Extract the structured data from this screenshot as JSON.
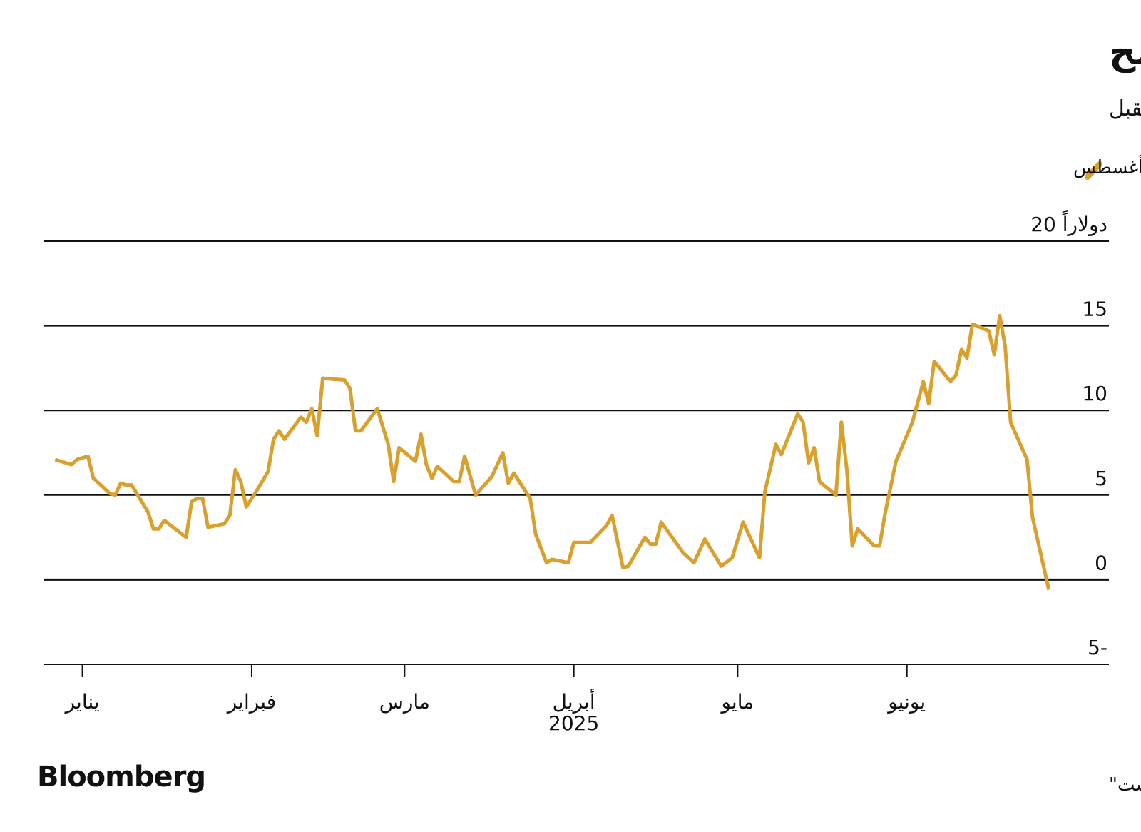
{
  "chart_data": {
    "type": "line",
    "title": "العقود المستقبلية للذرة الأوروبية أغلى من القمح",
    "subtitle": "الطقس الحار أثار مخاوف بشأن موسم الحصاد المقبل",
    "x": [
      -5,
      -2,
      -1,
      1,
      2,
      5,
      6,
      7,
      8,
      9,
      12,
      13,
      14,
      15,
      19,
      20,
      21,
      22,
      23,
      26,
      27,
      28,
      29,
      30,
      32,
      34,
      35,
      36,
      37,
      40,
      41,
      42,
      43,
      44,
      48,
      49,
      50,
      51,
      54,
      56,
      57,
      58,
      61,
      62,
      63,
      64,
      65,
      68,
      69,
      70,
      72,
      75,
      77,
      78,
      79,
      82,
      83,
      85,
      86,
      89,
      90,
      93,
      96,
      97,
      99,
      100,
      103,
      104,
      105,
      106,
      110,
      112,
      114,
      117,
      119,
      121,
      124,
      125,
      127,
      128,
      131,
      132,
      133,
      134,
      135,
      138,
      139,
      140,
      141,
      142,
      145,
      146,
      147,
      149,
      152,
      154,
      155,
      156,
      159,
      160,
      161,
      162,
      163,
      166,
      167,
      168,
      169,
      170,
      173,
      174,
      177
    ],
    "series": [
      {
        "name": "فارق سعر قمح إنتاج الدقيق تسليم شهر سبتمبر عن ذرة أغسطس",
        "color": "#d9a02e",
        "values": [
          7.1,
          6.8,
          7.1,
          7.3,
          6.0,
          5.1,
          5.0,
          5.7,
          5.6,
          5.6,
          4.0,
          3.0,
          3.0,
          3.5,
          2.5,
          4.6,
          4.8,
          4.8,
          3.1,
          3.3,
          3.8,
          6.5,
          5.8,
          4.3,
          5.3,
          6.4,
          8.3,
          8.8,
          8.3,
          9.6,
          9.3,
          10.1,
          8.5,
          11.9,
          11.8,
          11.3,
          8.8,
          8.8,
          10.1,
          8.0,
          5.8,
          7.8,
          7.0,
          8.6,
          6.8,
          6.0,
          6.7,
          5.8,
          5.8,
          7.3,
          5.0,
          6.1,
          7.5,
          5.7,
          6.3,
          4.8,
          2.7,
          1.0,
          1.2,
          1.0,
          2.2,
          2.2,
          3.2,
          3.8,
          0.7,
          0.8,
          2.5,
          2.1,
          2.1,
          3.4,
          1.6,
          1.0,
          2.4,
          0.8,
          1.3,
          3.4,
          1.3,
          5.2,
          8.0,
          7.4,
          9.8,
          9.3,
          6.9,
          7.8,
          5.8,
          5.0,
          9.3,
          6.5,
          2.0,
          3.0,
          2.0,
          2.0,
          3.9,
          7.0,
          9.3,
          11.7,
          10.4,
          12.9,
          11.7,
          12.1,
          13.6,
          13.1,
          15.1,
          14.7,
          13.3,
          15.6,
          13.8,
          9.3,
          7.1,
          3.7,
          -0.6
        ]
      }
    ],
    "xlim": [
      -7,
      188
    ],
    "xticks": [
      {
        "value": 0,
        "label": "يناير"
      },
      {
        "value": 31,
        "label": "فبراير"
      },
      {
        "value": 59,
        "label": "مارس"
      },
      {
        "value": 90,
        "label": "أبريل"
      },
      {
        "value": 120,
        "label": "مايو"
      },
      {
        "value": 151,
        "label": "يونيو"
      }
    ],
    "xlabel": "2025",
    "ylim": [
      -5,
      20
    ],
    "yticks": [
      {
        "value": -5,
        "label": "5-"
      },
      0,
      5,
      10,
      15,
      {
        "value": 20,
        "label": "20 دولاراً"
      }
    ],
    "grid": true,
    "source": "المصدر: \"يورونيكست\"",
    "brand": "Bloomberg"
  }
}
